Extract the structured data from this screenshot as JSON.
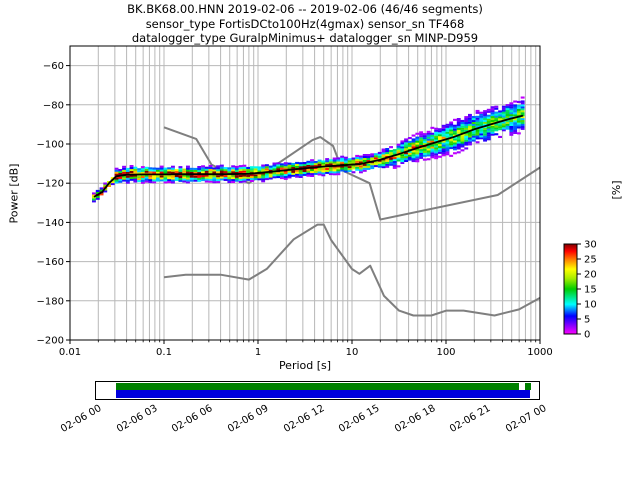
{
  "title": {
    "line1": "BK.BK68.00.HNN   2019-02-06 -- 2019-02-06  (46/46 segments)",
    "line2": "sensor_type FortisDCto100Hz(4gmax) sensor_sn TF468",
    "line3": "datalogger_type GuralpMinimus+ datalogger_sn MINP-D959"
  },
  "chart_data": {
    "type": "heatmap",
    "description": "Probabilistic power spectral density (PPSD) of seismic station channel BK.BK68.00.HNN",
    "xlabel": "Period [s]",
    "ylabel": "Power [dB]",
    "x_scale": "log",
    "xlim": [
      0.01,
      1000
    ],
    "ylim": [
      -200,
      -50
    ],
    "grid": true,
    "x_ticks": {
      "values": [
        0.01,
        0.1,
        1,
        10,
        100,
        1000
      ],
      "labels": [
        "0.01",
        "0.1",
        "1",
        "10",
        "100",
        "1000"
      ]
    },
    "y_ticks": {
      "values": [
        -60,
        -80,
        -100,
        -120,
        -140,
        -160,
        -180,
        -200
      ],
      "labels": [
        "−60",
        "−80",
        "−100",
        "−120",
        "−140",
        "−160",
        "−180",
        "−200"
      ]
    },
    "psd_mode_curve": {
      "periods": [
        0.018,
        0.022,
        0.026,
        0.031,
        0.04,
        0.06,
        0.1,
        0.2,
        0.4,
        0.8,
        1.5,
        3,
        5,
        8,
        12,
        20,
        30,
        50,
        80,
        120,
        200,
        300,
        450,
        660
      ],
      "power_db": [
        -127,
        -124.5,
        -120,
        -116.5,
        -115.7,
        -115.5,
        -115.5,
        -115.4,
        -115.4,
        -115.2,
        -114,
        -112.5,
        -111.5,
        -110.8,
        -110.3,
        -108,
        -105.5,
        -102,
        -99,
        -96.5,
        -92.5,
        -90,
        -87.5,
        -85.5
      ]
    },
    "noise_models": {
      "color": "#7f7f7f",
      "nhnm": [
        [
          0.1,
          -91.5
        ],
        [
          0.22,
          -97.4
        ],
        [
          0.32,
          -110.5
        ],
        [
          0.8,
          -120
        ],
        [
          3.8,
          -98
        ],
        [
          4.6,
          -96.5
        ],
        [
          6.3,
          -101
        ],
        [
          7.9,
          -113.5
        ],
        [
          15.4,
          -120
        ],
        [
          20,
          -138.5
        ],
        [
          354.8,
          -126
        ],
        [
          1000,
          -112
        ]
      ],
      "nlnm": [
        [
          0.1,
          -168
        ],
        [
          0.17,
          -166.7
        ],
        [
          0.4,
          -166.7
        ],
        [
          0.8,
          -169.2
        ],
        [
          1.24,
          -163.7
        ],
        [
          2.4,
          -148.6
        ],
        [
          4.3,
          -141.1
        ],
        [
          5,
          -141.1
        ],
        [
          6,
          -149
        ],
        [
          10,
          -163.8
        ],
        [
          12,
          -166.2
        ],
        [
          15.6,
          -162.1
        ],
        [
          21.9,
          -177.5
        ],
        [
          31.6,
          -185
        ],
        [
          45,
          -187.5
        ],
        [
          70,
          -187.5
        ],
        [
          101,
          -185
        ],
        [
          154,
          -185
        ],
        [
          328,
          -187.5
        ],
        [
          600,
          -184.4
        ],
        [
          1000,
          -178.5
        ]
      ]
    },
    "colorbar": {
      "label": "[%]",
      "min": 0,
      "max": 30,
      "tick_values": [
        30,
        25,
        20,
        15,
        10,
        5,
        0
      ],
      "tick_labels": [
        "30",
        "25",
        "20",
        "15",
        "10",
        "5",
        "0"
      ],
      "gradient": [
        [
          0.0,
          "#ff00ff"
        ],
        [
          0.1,
          "#8000ff"
        ],
        [
          0.2,
          "#0000ff"
        ],
        [
          0.33,
          "#00ffff"
        ],
        [
          0.5,
          "#00cc00"
        ],
        [
          0.62,
          "#aaee00"
        ],
        [
          0.72,
          "#ffff00"
        ],
        [
          0.82,
          "#ff8800"
        ],
        [
          0.92,
          "#ff0000"
        ],
        [
          1.0,
          "#7f0000"
        ]
      ]
    },
    "grid_color": "#b8b8b8",
    "mode_line_color": "#000000",
    "timeline": {
      "labels": [
        "02-06 00",
        "02-06 03",
        "02-06 06",
        "02-06 09",
        "02-06 12",
        "02-06 15",
        "02-06 18",
        "02-06 21",
        "02-07 00"
      ],
      "green": "#008000",
      "blue": "#0000dd",
      "green_segments": [
        [
          0.045,
          0.956
        ],
        [
          0.968,
          0.981
        ]
      ],
      "blue_segments": [
        [
          0.045,
          0.981
        ]
      ]
    }
  }
}
